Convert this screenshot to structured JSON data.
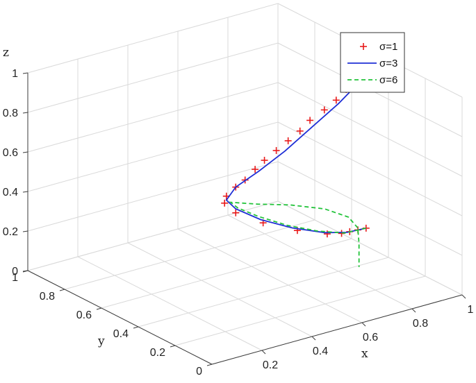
{
  "chart_data": {
    "type": "line3d",
    "title": "",
    "xlabel": "x",
    "ylabel": "y",
    "zlabel": "z",
    "xlim": [
      0,
      1
    ],
    "ylim": [
      0,
      1
    ],
    "zlim": [
      0,
      1
    ],
    "x_ticks": [
      "0.2",
      "0.4",
      "0.6",
      "0.8",
      "1"
    ],
    "y_ticks": [
      "0",
      "0.2",
      "0.4",
      "0.6",
      "0.8",
      "1"
    ],
    "z_ticks": [
      "0",
      "0.2",
      "0.4",
      "0.6",
      "0.8",
      "1"
    ],
    "grid": true,
    "legend_position": "top-right",
    "series": [
      {
        "name": "σ=1",
        "style": "markers-plus",
        "color": "#e8191a",
        "points": [
          [
            0.94,
            0.44,
            0.15
          ],
          [
            0.9,
            0.43,
            0.16
          ],
          [
            0.86,
            0.42,
            0.17
          ],
          [
            0.82,
            0.41,
            0.18
          ],
          [
            0.77,
            0.42,
            0.19
          ],
          [
            0.68,
            0.46,
            0.22
          ],
          [
            0.58,
            0.51,
            0.27
          ],
          [
            0.5,
            0.55,
            0.33
          ],
          [
            0.47,
            0.57,
            0.38
          ],
          [
            0.47,
            0.56,
            0.42
          ],
          [
            0.5,
            0.55,
            0.46
          ],
          [
            0.53,
            0.54,
            0.49
          ],
          [
            0.57,
            0.54,
            0.53
          ],
          [
            0.6,
            0.53,
            0.57
          ],
          [
            0.64,
            0.52,
            0.61
          ],
          [
            0.68,
            0.51,
            0.65
          ],
          [
            0.72,
            0.5,
            0.69
          ],
          [
            0.76,
            0.5,
            0.73
          ],
          [
            0.81,
            0.49,
            0.77
          ],
          [
            0.85,
            0.48,
            0.81
          ],
          [
            0.89,
            0.48,
            0.85
          ],
          [
            0.93,
            0.47,
            0.89
          ],
          [
            0.96,
            0.47,
            0.93
          ],
          [
            0.98,
            0.46,
            0.96
          ],
          [
            0.99,
            0.46,
            0.99
          ],
          [
            1.0,
            0.46,
            1.0
          ]
        ]
      },
      {
        "name": "σ=3",
        "style": "solid",
        "color": "#1f2fd6",
        "points": [
          [
            0.94,
            0.44,
            0.15
          ],
          [
            0.85,
            0.42,
            0.17
          ],
          [
            0.76,
            0.42,
            0.2
          ],
          [
            0.66,
            0.46,
            0.24
          ],
          [
            0.57,
            0.51,
            0.29
          ],
          [
            0.5,
            0.55,
            0.35
          ],
          [
            0.47,
            0.56,
            0.4
          ],
          [
            0.5,
            0.55,
            0.46
          ],
          [
            0.57,
            0.52,
            0.53
          ],
          [
            0.66,
            0.5,
            0.61
          ],
          [
            0.76,
            0.49,
            0.7
          ],
          [
            0.86,
            0.48,
            0.79
          ],
          [
            0.94,
            0.47,
            0.88
          ],
          [
            0.99,
            0.46,
            0.96
          ],
          [
            1.0,
            0.46,
            1.0
          ]
        ]
      },
      {
        "name": "σ=6",
        "style": "dashed",
        "color": "#22c33a",
        "points": [
          [
            0.94,
            0.44,
            0.15
          ],
          [
            0.84,
            0.42,
            0.17
          ],
          [
            0.74,
            0.43,
            0.21
          ],
          [
            0.64,
            0.46,
            0.26
          ],
          [
            0.56,
            0.51,
            0.31
          ],
          [
            0.5,
            0.54,
            0.36
          ],
          [
            0.48,
            0.55,
            0.39
          ],
          [
            0.55,
            0.5,
            0.38
          ],
          [
            0.65,
            0.46,
            0.36
          ],
          [
            0.76,
            0.42,
            0.32
          ],
          [
            0.84,
            0.4,
            0.26
          ],
          [
            0.87,
            0.39,
            0.2
          ],
          [
            0.875,
            0.39,
            0.12
          ],
          [
            0.875,
            0.39,
            0.0
          ]
        ]
      }
    ]
  }
}
